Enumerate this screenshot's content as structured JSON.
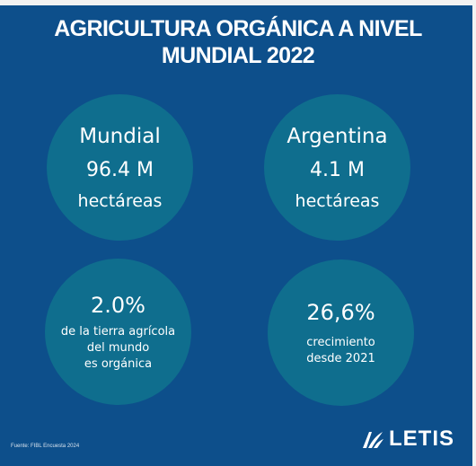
{
  "title": {
    "line1": "AGRICULTURA ORGÁNICA A NIVEL",
    "line2": "MUNDIAL 2022"
  },
  "cards": {
    "world": {
      "label": "Mundial",
      "value": "96.4 M",
      "unit": "hectáreas"
    },
    "argentina": {
      "label": "Argentina",
      "value": "4.1 M",
      "unit": "hectáreas"
    },
    "share": {
      "value": "2.0%",
      "desc1": "de la tierra agrícola",
      "desc2": "del mundo",
      "desc3": "es orgánica"
    },
    "growth": {
      "value": "26,6%",
      "desc1": "crecimiento",
      "desc2": "desde 2021"
    }
  },
  "footer": {
    "source": "Fuente: FIBL Encuesta 2024",
    "brand": "LETIS",
    "logo_icon": "letis-leaf-icon"
  },
  "colors": {
    "background": "#0d4f8b",
    "circle": "#0f6e8e",
    "text": "#ffffff"
  }
}
